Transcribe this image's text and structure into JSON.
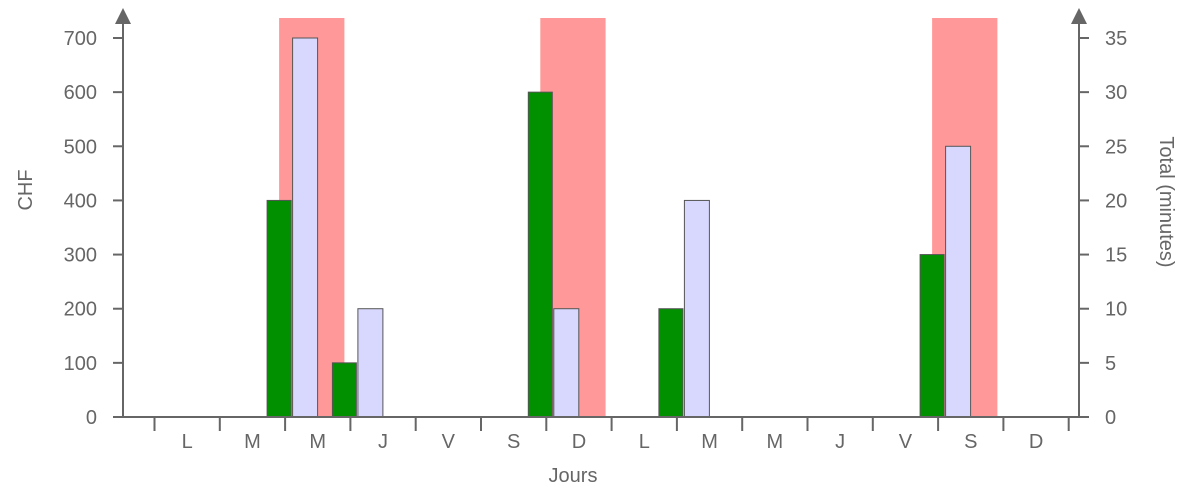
{
  "chart_data": {
    "type": "bar",
    "xlabel": "Jours",
    "ylabel_left": "CHF",
    "ylabel_right": "Total (minutes)",
    "categories": [
      "L",
      "M",
      "M",
      "J",
      "V",
      "S",
      "D",
      "L",
      "M",
      "M",
      "J",
      "V",
      "S",
      "D"
    ],
    "ylim_left": [
      0,
      700
    ],
    "yticks_left": [
      0,
      100,
      200,
      300,
      400,
      500,
      600,
      700
    ],
    "ylim_right": [
      0,
      35
    ],
    "yticks_right": [
      0,
      5,
      10,
      15,
      20,
      25,
      30,
      35
    ],
    "series": [
      {
        "axis": "left",
        "color": "#009000",
        "values": [
          0,
          0,
          400,
          100,
          0,
          0,
          600,
          0,
          200,
          0,
          0,
          0,
          300,
          0
        ]
      },
      {
        "axis": "right",
        "color": "#d8d8ff",
        "values": [
          0,
          0,
          35,
          10,
          0,
          0,
          10,
          0,
          20,
          0,
          0,
          0,
          25,
          0
        ]
      }
    ],
    "highlight_categories": [
      2,
      6,
      12
    ],
    "highlight_color": "#ff9999",
    "axis_color": "#666666",
    "grid": false
  }
}
